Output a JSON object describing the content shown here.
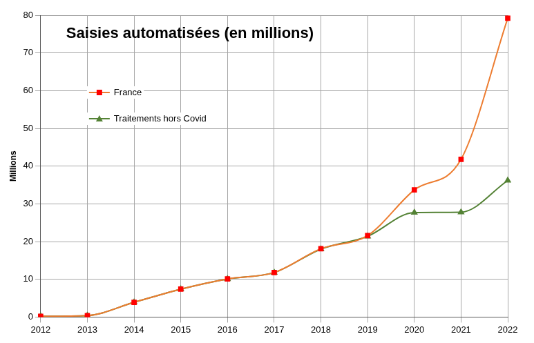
{
  "chart_data": {
    "type": "line",
    "title": "Saisies automatisées (en millions)",
    "y_label": "Millions",
    "categories": [
      "2012",
      "2013",
      "2014",
      "2015",
      "2016",
      "2017",
      "2018",
      "2019",
      "2020",
      "2021",
      "2022"
    ],
    "series": [
      {
        "name": "France",
        "color": "#ed7d31",
        "marker": "square",
        "values": [
          0.2,
          0.4,
          3.9,
          7.4,
          10.1,
          11.8,
          18.1,
          21.6,
          33.7,
          41.8,
          79.2
        ]
      },
      {
        "name": "Traitements hors Covid",
        "color": "#548235",
        "marker": "triangle",
        "values": [
          0.2,
          0.4,
          3.9,
          7.4,
          10.1,
          11.8,
          18.0,
          21.4,
          27.7,
          27.8,
          36.2
        ]
      }
    ],
    "ylim": [
      0,
      80
    ],
    "yticks": [
      0,
      10,
      20,
      30,
      40,
      50,
      60,
      70,
      80
    ],
    "grid": true,
    "legend": "upper left"
  }
}
